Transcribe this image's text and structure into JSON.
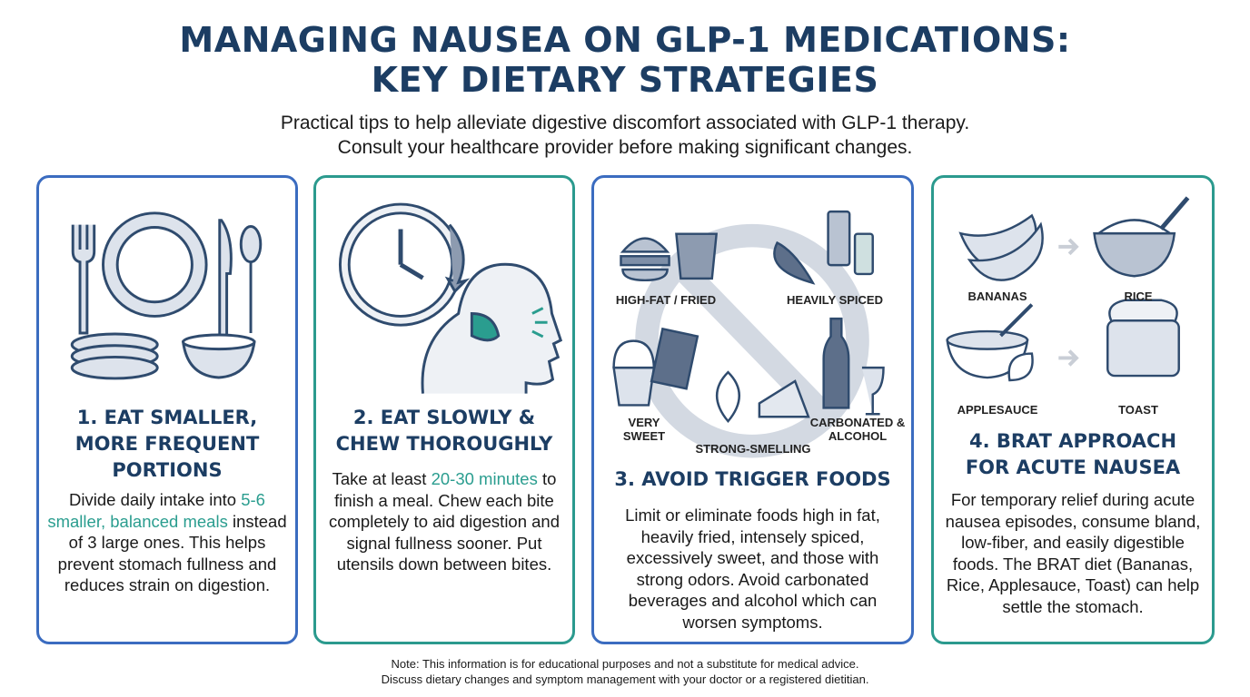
{
  "title": {
    "line1": "MANAGING NAUSEA ON GLP-1 MEDICATIONS:",
    "line2": "KEY DIETARY STRATEGIES"
  },
  "subtitle": {
    "line1": "Practical tips to help alleviate digestive discomfort associated with GLP-1 therapy.",
    "line2": "Consult your healthcare provider before making significant changes."
  },
  "colors": {
    "title": "#1c3d63",
    "blue_border": "#3b6cc0",
    "teal_border": "#2b9a8e",
    "highlight": "#2a9d8f",
    "icon_gray": "#8d9bb0"
  },
  "cards": [
    {
      "heading": [
        "1. EAT SMALLER,",
        "MORE FREQUENT",
        "PORTIONS"
      ],
      "body": {
        "pre": "Divide daily intake into ",
        "highlight": "5-6 smaller, balanced meals",
        "post": " instead of 3 large ones. This helps prevent stomach fullness and reduces strain on digestion."
      },
      "icons": [
        "fork-icon",
        "plate-icon",
        "knife-icon",
        "spoon-icon",
        "stacked-plates-icon",
        "bowl-icon"
      ]
    },
    {
      "heading": [
        "2. EAT SLOWLY &",
        "CHEW THOROUGHLY"
      ],
      "body": {
        "pre": "Take at least ",
        "highlight": "20-30 minutes",
        "post": " to finish a meal. Chew each bite completely to aid digestion and signal fullness sooner. Put utensils down between bites."
      },
      "icons": [
        "clock-icon",
        "head-chewing-icon"
      ]
    },
    {
      "heading": [
        "3. AVOID TRIGGER FOODS"
      ],
      "body": {
        "text": "Limit or eliminate foods high in fat, heavily fried, intensely spiced, excessively sweet, and those with strong odors. Avoid carbonated beverages and alcohol which can worsen symptoms."
      },
      "labels": [
        "HIGH-FAT / FRIED",
        "HEAVILY SPICED",
        "VERY SWEET",
        "STRONG-SMELLING",
        "CARBONATED & ALCOHOL"
      ],
      "icons": [
        "prohibited-icon",
        "burger-fries-icon",
        "pepper-spices-icon",
        "cupcake-chocolate-icon",
        "onion-cheese-icon",
        "soda-wine-icon"
      ]
    },
    {
      "heading": [
        "4. BRAT APPROACH",
        "FOR ACUTE NAUSEA"
      ],
      "body": {
        "text": "For temporary relief during acute nausea episodes, consume bland, low-fiber, and easily digestible foods. The BRAT diet (Bananas, Rice, Applesauce, Toast) can help settle the stomach."
      },
      "labels": [
        "BANANAS",
        "RICE",
        "APPLESAUCE",
        "TOAST"
      ],
      "icons": [
        "banana-icon",
        "rice-bowl-icon",
        "applesauce-icon",
        "toaster-icon",
        "arrow-right-icon"
      ]
    }
  ],
  "note": {
    "line1": "Note: This information is for educational purposes and not a substitute for medical advice.",
    "line2": "Discuss dietary changes and symptom management with your doctor or a registered dietitian."
  }
}
